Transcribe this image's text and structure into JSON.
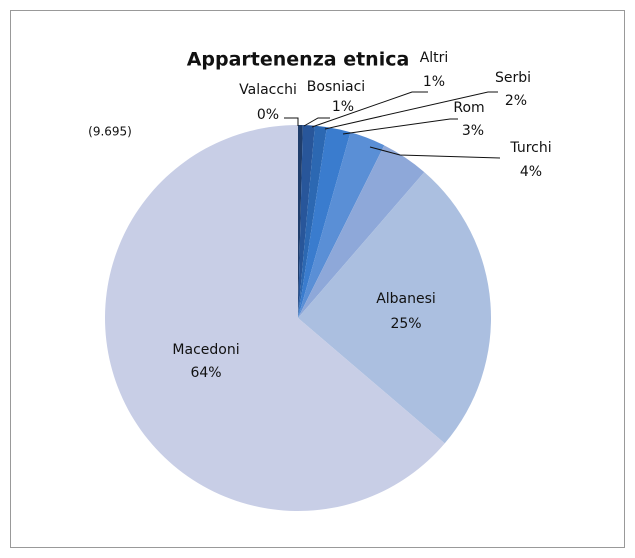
{
  "chart_data": {
    "type": "pie",
    "title": "Appartenenza etnica",
    "annotation": "(9.695)",
    "categories": [
      "Valacchi",
      "Bosniaci",
      "Altri",
      "Serbi",
      "Rom",
      "Turchi",
      "Albanesi",
      "Macedoni"
    ],
    "values": [
      0.4,
      1,
      1,
      2,
      3,
      4,
      25,
      64
    ],
    "value_labels": [
      "0%",
      "1%",
      "1%",
      "2%",
      "3%",
      "4%",
      "25%",
      "64%"
    ],
    "colors": [
      "#1f3d6b",
      "#28569a",
      "#2c68b2",
      "#3a7cce",
      "#5a8fd6",
      "#8ea8d9",
      "#abbfe0",
      "#c8cee6"
    ]
  }
}
